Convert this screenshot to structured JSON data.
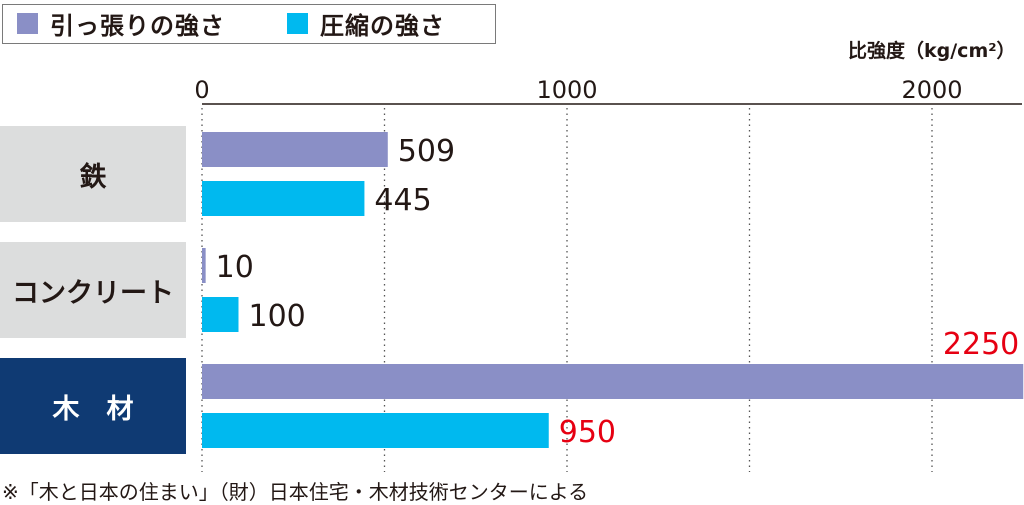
{
  "legend": {
    "items": [
      {
        "label": "引っ張りの強さ",
        "color": "#8a8fc6"
      },
      {
        "label": "圧縮の強さ",
        "color": "#00b9ef"
      }
    ]
  },
  "chart_data": {
    "type": "bar",
    "orientation": "horizontal",
    "categories": [
      "鉄",
      "コンクリート",
      "木　材"
    ],
    "series": [
      {
        "name": "引っ張りの強さ",
        "values": [
          509,
          10,
          2250
        ],
        "color": "#8a8fc6"
      },
      {
        "name": "圧縮の強さ",
        "values": [
          445,
          100,
          950
        ],
        "color": "#00b9ef"
      }
    ],
    "xlabel": "比強度（kg/cm²）",
    "xlim": [
      0,
      2200
    ],
    "xticks": [
      "0",
      "1000",
      "2000"
    ],
    "grid": "vertical dotted",
    "legend_position": "top-left",
    "category_styles": [
      {
        "background": "#dcdddd",
        "text_color": "#231815"
      },
      {
        "background": "#dcdddd",
        "text_color": "#231815"
      },
      {
        "background": "#0f3a73",
        "text_color": "#ffffff"
      }
    ],
    "highlight_label_color": "#e60012"
  },
  "footnote": "※「木と日本の住まい」（財）日本住宅・木材技術センターによる"
}
